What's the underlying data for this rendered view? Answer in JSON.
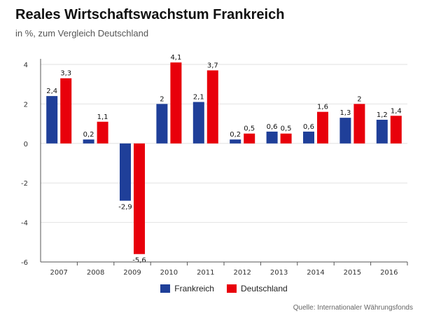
{
  "chart_data": {
    "type": "bar",
    "title": "Reales Wirtschaftswachstum Frankreich",
    "subtitle": "in %, zum Vergleich Deutschland",
    "categories": [
      "2007",
      "2008",
      "2009",
      "2010",
      "2011",
      "2012",
      "2013",
      "2014",
      "2015",
      "2016"
    ],
    "series": [
      {
        "name": "Frankreich",
        "color": "#1f3f99",
        "values": [
          2.4,
          0.2,
          -2.9,
          2.0,
          2.1,
          0.2,
          0.6,
          0.6,
          1.3,
          1.2
        ],
        "labels": [
          "2,4",
          "0,2",
          "-2,9",
          "2",
          "2,1",
          "0,2",
          "0,6",
          "0,6",
          "1,3",
          "1,2"
        ]
      },
      {
        "name": "Deutschland",
        "color": "#e8000b",
        "values": [
          3.3,
          1.1,
          -5.6,
          4.1,
          3.7,
          0.5,
          0.5,
          1.6,
          2.0,
          1.4
        ],
        "labels": [
          "3,3",
          "1,1",
          "-5,6",
          "4,1",
          "3,7",
          "0,5",
          "0,5",
          "1,6",
          "2",
          "1,4"
        ]
      }
    ],
    "ylim": [
      -6,
      4
    ],
    "yticks": [
      4,
      2,
      0,
      -2,
      -4,
      -6
    ],
    "ytick_labels": [
      "4",
      "2",
      "0",
      "-2",
      "-4",
      "-6"
    ],
    "grid": true,
    "legend": "bottom-center",
    "source": "Quelle: Internationaler Währungsfonds"
  }
}
